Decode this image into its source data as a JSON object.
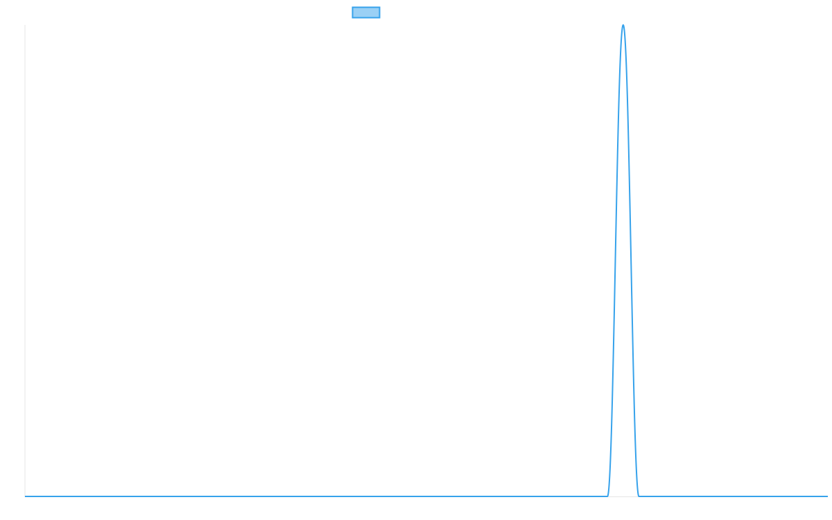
{
  "chart_data": {
    "type": "line",
    "title": "",
    "xlabel": "",
    "ylabel": "",
    "legend": {
      "position": "top",
      "entries": [
        {
          "label": "",
          "color": "#36a2eb"
        }
      ]
    },
    "grid": false,
    "ylim": [
      0,
      1
    ],
    "x": [
      0,
      1,
      2,
      3,
      4,
      5,
      6,
      7,
      8,
      9,
      10,
      11,
      12,
      13,
      14,
      15,
      16,
      17,
      18,
      19,
      20,
      21,
      22,
      23,
      24,
      25,
      26,
      27,
      28,
      29,
      30,
      31,
      32,
      33,
      34,
      35,
      36,
      37,
      38,
      39,
      40,
      41,
      42,
      43,
      44,
      45,
      46,
      47,
      48,
      49,
      50,
      51
    ],
    "series": [
      {
        "color": "#36a2eb",
        "fill": "#9ad0f5",
        "values": [
          0,
          0,
          0,
          0,
          0,
          0,
          0,
          0,
          0,
          0,
          0,
          0,
          0,
          0,
          0,
          0,
          0,
          0,
          0,
          0,
          0,
          0,
          0,
          0,
          0,
          0,
          0,
          0,
          0,
          0,
          0,
          0,
          0,
          0,
          0,
          0,
          0,
          0,
          1,
          0,
          0,
          0,
          0,
          0,
          0,
          0,
          0,
          0,
          0,
          0,
          0,
          0
        ]
      }
    ]
  }
}
